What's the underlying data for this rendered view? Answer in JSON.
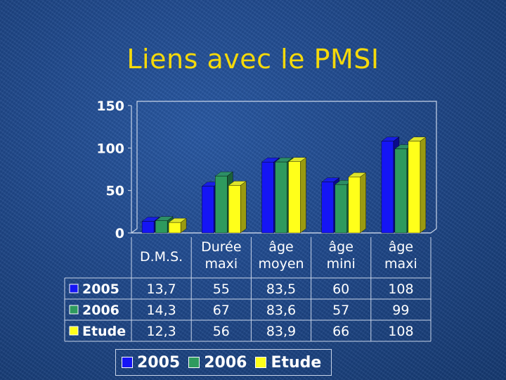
{
  "title": "Liens avec le PMSI",
  "chart_data": {
    "type": "bar",
    "categories": [
      "D.M.S.",
      "Durée maxi",
      "âge moyen",
      "âge mini",
      "âge maxi"
    ],
    "category_lines": [
      [
        "D.M.S."
      ],
      [
        "Durée",
        "maxi"
      ],
      [
        "âge",
        "moyen"
      ],
      [
        "âge",
        "mini"
      ],
      [
        "âge",
        "maxi"
      ]
    ],
    "series": [
      {
        "name": "2005",
        "values": [
          13.7,
          55,
          83.5,
          60,
          108
        ],
        "labels": [
          "13,7",
          "55",
          "83,5",
          "60",
          "108"
        ],
        "color": "#1515f5",
        "side_color": "#0b0b8a"
      },
      {
        "name": "2006",
        "values": [
          14.3,
          67,
          83.6,
          57,
          99
        ],
        "labels": [
          "14,3",
          "67",
          "83,6",
          "57",
          "99"
        ],
        "color": "#2e9a5e",
        "side_color": "#1b6038"
      },
      {
        "name": "Etude",
        "values": [
          12.3,
          56,
          83.9,
          66,
          108
        ],
        "labels": [
          "12,3",
          "56",
          "83,9",
          "66",
          "108"
        ],
        "color": "#ffff1a",
        "side_color": "#9a9a10"
      }
    ],
    "ylim": [
      0,
      150
    ],
    "yticks": [
      0,
      50,
      100,
      150
    ],
    "grid": false,
    "data_table": true,
    "legend_position": "bottom"
  },
  "colors": {
    "title": "#f5d90a",
    "text": "#ffffff",
    "plot_border": "#c8d4e8"
  }
}
